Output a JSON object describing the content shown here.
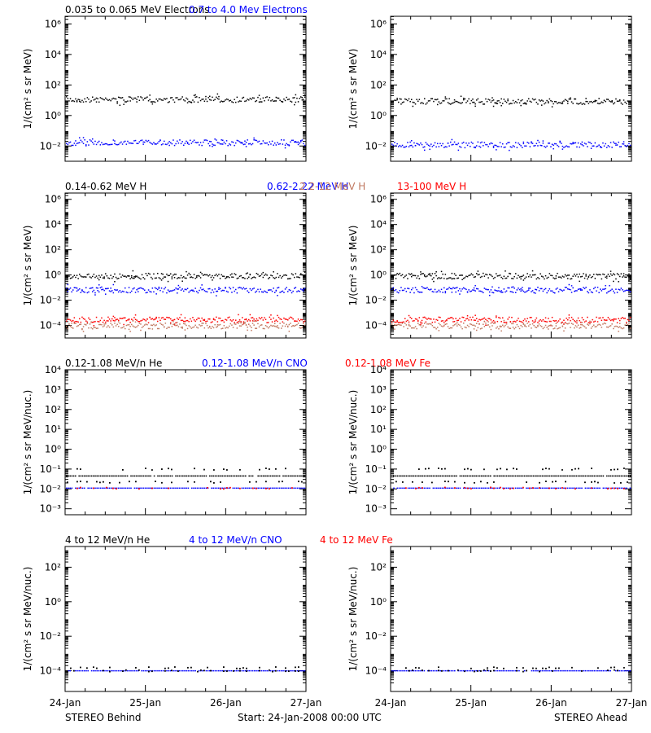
{
  "colors": {
    "black": "#000000",
    "blue": "#0000ff",
    "brown": "#c07860",
    "red": "#ff0000"
  },
  "footer": {
    "left": "STEREO Behind",
    "center": "Start: 24-Jan-2008 00:00 UTC",
    "right": "STEREO Ahead"
  },
  "chart_data": [
    {
      "type": "scatter",
      "legend": [
        {
          "label": "0.035 to 0.065 MeV Electrons",
          "color": "#000000"
        },
        {
          "label": "0.7 to 4.0 Mev Electrons",
          "color": "#0000ff"
        }
      ],
      "ylabel": "1/(cm² s sr MeV)",
      "yscale": "log",
      "ylim_exp": [
        -3,
        6.5
      ],
      "ytick_exps": [
        -2,
        0,
        2,
        4,
        6
      ],
      "xticks": [
        "24-Jan",
        "25-Jan",
        "26-Jan",
        "27-Jan"
      ],
      "xlim_days": [
        0,
        3
      ],
      "panels": [
        {
          "name": "STEREO Behind",
          "series": [
            {
              "color": "#000000",
              "level": 12,
              "kind": "dense"
            },
            {
              "color": "#0000ff",
              "level": 0.018,
              "kind": "dense"
            }
          ]
        },
        {
          "name": "STEREO Ahead",
          "series": [
            {
              "color": "#000000",
              "level": 9,
              "kind": "dense"
            },
            {
              "color": "#0000ff",
              "level": 0.013,
              "kind": "dense"
            }
          ]
        }
      ]
    },
    {
      "type": "scatter",
      "legend": [
        {
          "label": "0.14-0.62 MeV H",
          "color": "#000000"
        },
        {
          "label": "0.62-2.22 MeV H",
          "color": "#0000ff"
        },
        {
          "label": "2.2-12 MeV H",
          "color": "#c07860"
        },
        {
          "label": "13-100 MeV H",
          "color": "#ff0000"
        }
      ],
      "ylabel": "1/(cm² s sr MeV)",
      "yscale": "log",
      "ylim_exp": [
        -5,
        6.5
      ],
      "ytick_exps": [
        -4,
        -2,
        0,
        2,
        4,
        6
      ],
      "xticks": [
        "24-Jan",
        "25-Jan",
        "26-Jan",
        "27-Jan"
      ],
      "xlim_days": [
        0,
        3
      ],
      "panels": [
        {
          "name": "STEREO Behind",
          "series": [
            {
              "color": "#000000",
              "level": 0.9,
              "kind": "dense"
            },
            {
              "color": "#0000ff",
              "level": 0.07,
              "kind": "dense"
            },
            {
              "color": "#ff0000",
              "level": 0.0003,
              "kind": "dense"
            },
            {
              "color": "#c07860",
              "level": 0.0001,
              "kind": "dense"
            }
          ]
        },
        {
          "name": "STEREO Ahead",
          "series": [
            {
              "color": "#000000",
              "level": 0.9,
              "kind": "dense"
            },
            {
              "color": "#0000ff",
              "level": 0.07,
              "kind": "dense"
            },
            {
              "color": "#ff0000",
              "level": 0.0003,
              "kind": "dense"
            },
            {
              "color": "#c07860",
              "level": 0.0001,
              "kind": "dense"
            }
          ]
        }
      ]
    },
    {
      "type": "scatter",
      "legend": [
        {
          "label": "0.12-1.08 MeV/n He",
          "color": "#000000"
        },
        {
          "label": "0.12-1.08 MeV/n CNO",
          "color": "#0000ff"
        },
        {
          "label": "0.12-1.08 MeV Fe",
          "color": "#ff0000"
        }
      ],
      "ylabel": "1/(cm² s sr MeV/nuc.)",
      "yscale": "log",
      "ylim_exp": [
        -3.3,
        4
      ],
      "ytick_exps": [
        -3,
        -2,
        -1,
        0,
        1,
        2,
        3,
        4
      ],
      "xticks": [
        "24-Jan",
        "25-Jan",
        "26-Jan",
        "27-Jan"
      ],
      "xlim_days": [
        0,
        3
      ],
      "panels": [
        {
          "name": "STEREO Behind",
          "series": [
            {
              "color": "#000000",
              "level": 0.045,
              "kind": "line"
            },
            {
              "color": "#000000",
              "level": 0.1,
              "kind": "sparse"
            },
            {
              "color": "#000000",
              "level": 0.022,
              "kind": "sparse"
            },
            {
              "color": "#0000ff",
              "level": 0.011,
              "kind": "line"
            },
            {
              "color": "#ff0000",
              "level": 0.011,
              "kind": "sparse"
            }
          ]
        },
        {
          "name": "STEREO Ahead",
          "series": [
            {
              "color": "#000000",
              "level": 0.045,
              "kind": "line"
            },
            {
              "color": "#000000",
              "level": 0.1,
              "kind": "sparse"
            },
            {
              "color": "#000000",
              "level": 0.022,
              "kind": "sparse"
            },
            {
              "color": "#0000ff",
              "level": 0.011,
              "kind": "line"
            },
            {
              "color": "#ff0000",
              "level": 0.011,
              "kind": "sparse"
            }
          ]
        }
      ]
    },
    {
      "type": "scatter",
      "legend": [
        {
          "label": "4 to 12 MeV/n He",
          "color": "#000000"
        },
        {
          "label": "4 to 12 MeV/n CNO",
          "color": "#0000ff"
        },
        {
          "label": "4 to 12 MeV Fe",
          "color": "#ff0000"
        }
      ],
      "ylabel": "1/(cm² s sr MeV/nuc.)",
      "yscale": "log",
      "ylim_exp": [
        -5.2,
        3.2
      ],
      "ytick_exps": [
        -4,
        -2,
        0,
        2
      ],
      "xticks": [
        "24-Jan",
        "25-Jan",
        "26-Jan",
        "27-Jan"
      ],
      "xlim_days": [
        0,
        3
      ],
      "panels": [
        {
          "name": "STEREO Behind",
          "series": [
            {
              "color": "#0000ff",
              "level": 0.0001,
              "kind": "line"
            },
            {
              "color": "#000000",
              "level": 0.0001,
              "kind": "sparse"
            },
            {
              "color": "#000000",
              "level": 0.00015,
              "kind": "sparse"
            }
          ]
        },
        {
          "name": "STEREO Ahead",
          "series": [
            {
              "color": "#0000ff",
              "level": 0.0001,
              "kind": "line"
            },
            {
              "color": "#000000",
              "level": 0.0001,
              "kind": "sparse"
            },
            {
              "color": "#000000",
              "level": 0.00015,
              "kind": "sparse"
            }
          ]
        }
      ]
    }
  ]
}
